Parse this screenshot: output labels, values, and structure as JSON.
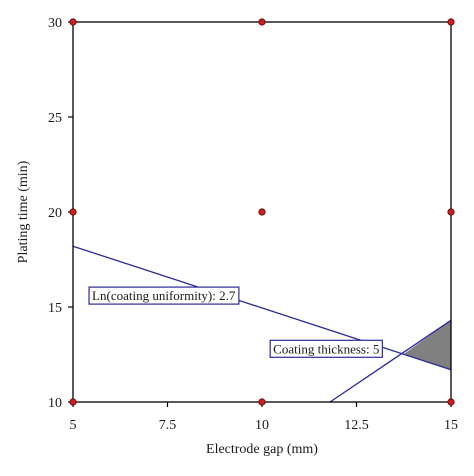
{
  "chart_data": {
    "type": "contour-overlay",
    "title": "",
    "xlabel": "Electrode gap (mm)",
    "ylabel": "Plating time (min)",
    "xlim": [
      5,
      15
    ],
    "ylim": [
      10,
      30
    ],
    "x_ticks": [
      5,
      7.5,
      10,
      12.5,
      15
    ],
    "x_tick_labels": [
      "5",
      "7.5",
      "10",
      "12.5",
      "15"
    ],
    "y_ticks": [
      10,
      15,
      20,
      25,
      30
    ],
    "y_tick_labels": [
      "10",
      "15",
      "20",
      "25",
      "30"
    ],
    "grid": false,
    "colors": {
      "contour_line": "#2a2a9a",
      "design_point": "#cc1f1f",
      "feasible_region": "#808080",
      "frame": "#000000"
    },
    "design_points": [
      {
        "x": 5,
        "y": 10
      },
      {
        "x": 10,
        "y": 10
      },
      {
        "x": 15,
        "y": 10
      },
      {
        "x": 5,
        "y": 20
      },
      {
        "x": 10,
        "y": 20
      },
      {
        "x": 15,
        "y": 20
      },
      {
        "x": 5,
        "y": 30
      },
      {
        "x": 10,
        "y": 30
      },
      {
        "x": 15,
        "y": 30
      }
    ],
    "contours": [
      {
        "label": "Ln(coating uniformity): 2.7",
        "points": [
          {
            "x": 5,
            "y": 18.2
          },
          {
            "x": 15,
            "y": 11.7
          }
        ],
        "label_at": {
          "x": 7.4,
          "y": 15.6
        }
      },
      {
        "label": "Coating thickness: 5",
        "points": [
          {
            "x": 11.8,
            "y": 10
          },
          {
            "x": 15,
            "y": 14.3
          }
        ],
        "label_at": {
          "x": 11.7,
          "y": 12.8
        }
      }
    ],
    "feasible_region": [
      {
        "x": 13.75,
        "y": 12.52
      },
      {
        "x": 15,
        "y": 14.3
      },
      {
        "x": 15,
        "y": 11.7
      }
    ]
  }
}
